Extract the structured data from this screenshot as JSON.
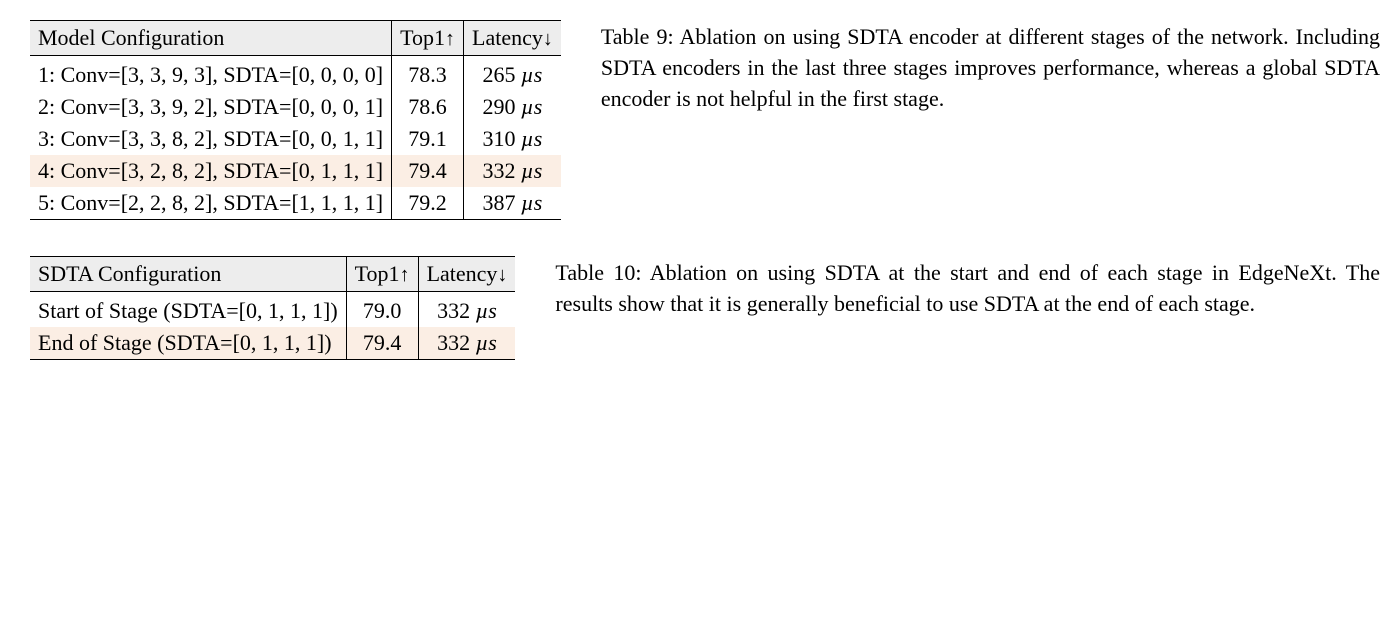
{
  "table9": {
    "col_config": "Model Configuration",
    "col_top1": "Top1",
    "col_lat": "Latency",
    "arrow_up": "↑",
    "arrow_down": "↓",
    "rows": [
      {
        "hl": false,
        "config": "1: Conv=[3, 3, 9, 3], SDTA=[0, 0, 0, 0]",
        "top1": "78.3",
        "lat": "265 ",
        "unit": "µs"
      },
      {
        "hl": false,
        "config": "2: Conv=[3, 3, 9, 2], SDTA=[0, 0, 0, 1]",
        "top1": "78.6",
        "lat": "290 ",
        "unit": "µs"
      },
      {
        "hl": false,
        "config": "3: Conv=[3, 3, 8, 2], SDTA=[0, 0, 1, 1]",
        "top1": "79.1",
        "lat": "310 ",
        "unit": "µs"
      },
      {
        "hl": true,
        "config": "4: Conv=[3, 2, 8, 2], SDTA=[0, 1, 1, 1]",
        "top1": "79.4",
        "lat": "332 ",
        "unit": "µs"
      },
      {
        "hl": false,
        "config": "5: Conv=[2, 2, 8, 2], SDTA=[1, 1, 1, 1]",
        "top1": "79.2",
        "lat": "387 ",
        "unit": "µs"
      }
    ],
    "caption_label": "Table 9:",
    "caption_text": " Ablation on using SDTA encoder at different stages of the network. Including SDTA encoders in the last three stages improves performance, whereas a global SDTA encoder is not helpful in the first stage."
  },
  "table10": {
    "col_config": "SDTA Configuration",
    "col_top1": "Top1",
    "col_lat": "Latency",
    "arrow_up": "↑",
    "arrow_down": "↓",
    "rows": [
      {
        "hl": false,
        "config": "Start of Stage (SDTA=[0, 1, 1, 1])",
        "top1": "79.0",
        "lat": "332 ",
        "unit": "µs"
      },
      {
        "hl": true,
        "config": "End of Stage (SDTA=[0, 1, 1, 1])",
        "top1": "79.4",
        "lat": "332 ",
        "unit": "µs"
      }
    ],
    "caption_label": "Table 10:",
    "caption_text": " Ablation on using SDTA at the start and end of each stage in EdgeNeXt. The results show that it is generally beneficial to use SDTA at the end of each stage."
  },
  "style": {
    "background_color": "#ffffff",
    "header_bg": "#ededed",
    "highlight_bg": "#fbeee4",
    "border_color": "#000000",
    "font_size_body": 22,
    "font_family": "Times New Roman"
  }
}
